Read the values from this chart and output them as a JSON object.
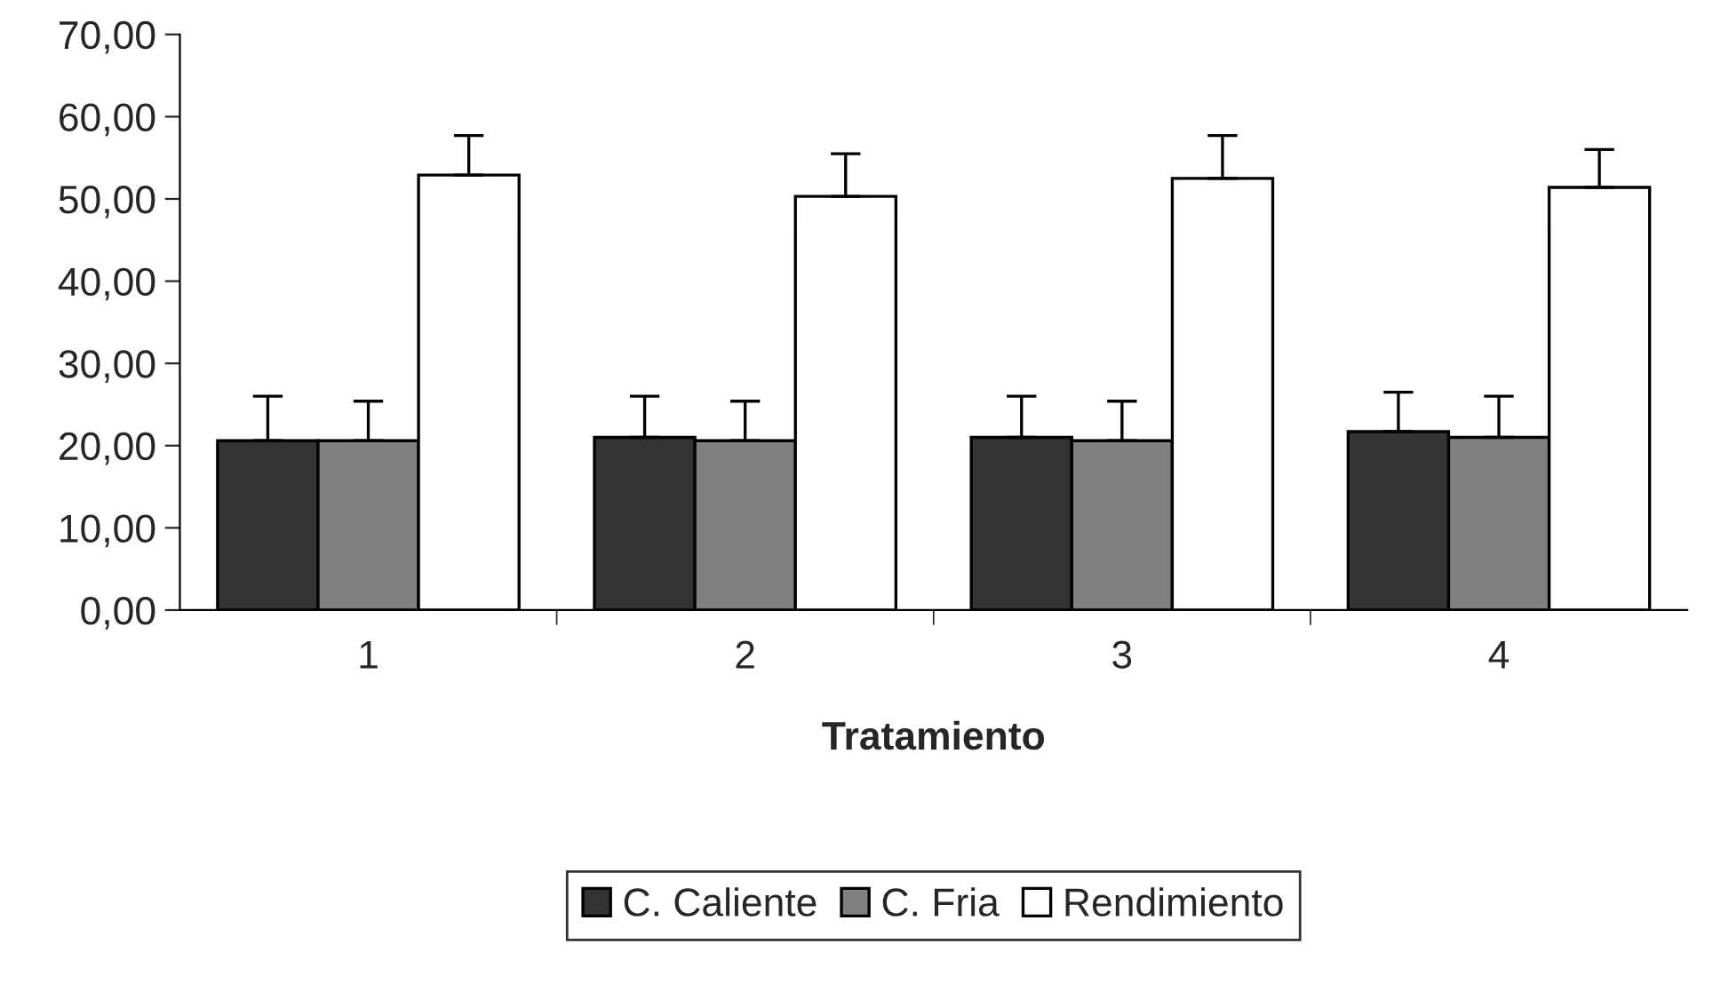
{
  "chart_data": {
    "type": "bar",
    "xlabel": "Tratamiento",
    "categories": [
      "1",
      "2",
      "3",
      "4"
    ],
    "series": [
      {
        "name": "C. Caliente",
        "color": "#333333",
        "values": [
          20.6,
          21.0,
          21.0,
          21.7
        ],
        "errors": [
          [
            20.6,
            26.0
          ],
          [
            21.0,
            26.0
          ],
          [
            21.0,
            26.0
          ],
          [
            21.7,
            26.5
          ]
        ]
      },
      {
        "name": "C. Fria",
        "color": "#808080",
        "values": [
          20.6,
          20.6,
          20.6,
          21.0
        ],
        "errors": [
          [
            20.6,
            25.4
          ],
          [
            20.6,
            25.4
          ],
          [
            20.6,
            25.4
          ],
          [
            21.0,
            26.0
          ]
        ]
      },
      {
        "name": "Rendimiento",
        "color": "#ffffff",
        "values": [
          52.9,
          50.3,
          52.5,
          51.4
        ],
        "errors": [
          [
            52.9,
            57.7
          ],
          [
            50.3,
            55.5
          ],
          [
            52.5,
            57.7
          ],
          [
            51.4,
            56.0
          ]
        ]
      }
    ],
    "ylim": [
      0,
      70
    ],
    "yticks": [
      {
        "value": 0,
        "label": "0,00"
      },
      {
        "value": 10,
        "label": "10,00"
      },
      {
        "value": 20,
        "label": "20,00"
      },
      {
        "value": 30,
        "label": "30,00"
      },
      {
        "value": 40,
        "label": "40,00"
      },
      {
        "value": 50,
        "label": "50,00"
      },
      {
        "value": 60,
        "label": "60,00"
      },
      {
        "value": 70,
        "label": "70,00"
      }
    ],
    "grid": false,
    "legend": "bottom"
  }
}
